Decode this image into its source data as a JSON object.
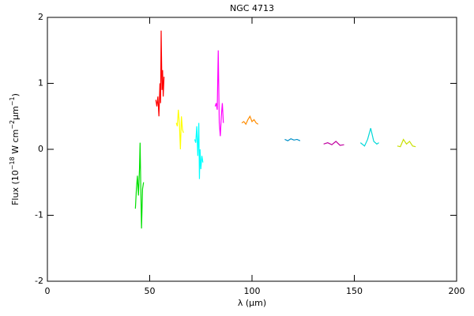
{
  "chart_data": {
    "type": "line",
    "title": "NGC 4713",
    "xlabel": "λ (μm)",
    "ylabel": [
      {
        "text": "Flux (10"
      },
      {
        "text": "−18",
        "sup": true
      },
      {
        "text": " W cm"
      },
      {
        "text": "−2",
        "sup": true
      },
      {
        "text": "μm"
      },
      {
        "text": "−1",
        "sup": true
      },
      {
        "text": ")"
      }
    ],
    "xlim": [
      0,
      200
    ],
    "xticks": [
      0,
      50,
      100,
      150,
      200
    ],
    "ylim": [
      -2,
      2
    ],
    "yticks": [
      -2,
      -1,
      0,
      1,
      2
    ],
    "series": [
      {
        "color": "#00e000",
        "x": [
          43,
          43.5,
          44,
          44.5,
          45,
          45.3,
          45.6,
          46,
          46.5,
          47
        ],
        "values": [
          -0.9,
          -0.6,
          -0.4,
          -0.7,
          -0.3,
          0.1,
          -0.5,
          -1.2,
          -0.6,
          -0.5
        ]
      },
      {
        "color": "#ff0000",
        "x": [
          53,
          53.5,
          54,
          54.5,
          55,
          55.3,
          55.6,
          56,
          56.3,
          56.6,
          57
        ],
        "values": [
          0.75,
          0.65,
          0.8,
          0.5,
          1.0,
          0.7,
          1.8,
          0.9,
          1.2,
          0.8,
          1.1
        ]
      },
      {
        "color": "#ffff00",
        "x": [
          63,
          63.5,
          64,
          64.5,
          65,
          65.5,
          66,
          66.5
        ],
        "values": [
          0.4,
          0.35,
          0.6,
          0.4,
          0.0,
          0.5,
          0.3,
          0.25
        ]
      },
      {
        "color": "#00ffff",
        "x": [
          72,
          72.5,
          73,
          73.5,
          74,
          74.3,
          74.6,
          75,
          75.5,
          76
        ],
        "values": [
          0.15,
          0.1,
          0.35,
          -0.1,
          0.4,
          -0.45,
          0.0,
          -0.3,
          -0.1,
          -0.2
        ]
      },
      {
        "color": "#ff00ff",
        "x": [
          82,
          82.5,
          83,
          83.5,
          84,
          84.5,
          85,
          85.5,
          86
        ],
        "values": [
          0.65,
          0.7,
          0.6,
          1.5,
          0.4,
          0.2,
          0.5,
          0.7,
          0.4
        ]
      },
      {
        "color": "#ff8c00",
        "x": [
          95,
          96,
          97,
          98,
          99,
          100,
          101,
          102,
          103
        ],
        "values": [
          0.4,
          0.42,
          0.38,
          0.45,
          0.5,
          0.42,
          0.45,
          0.4,
          0.38
        ]
      },
      {
        "color": "#0090c8",
        "x": [
          116,
          117.5,
          119,
          120.5,
          122,
          123.5
        ],
        "values": [
          0.15,
          0.13,
          0.16,
          0.14,
          0.15,
          0.13
        ]
      },
      {
        "color": "#c000a0",
        "x": [
          135,
          137,
          139,
          141,
          143,
          145
        ],
        "values": [
          0.08,
          0.1,
          0.07,
          0.12,
          0.06,
          0.07
        ]
      },
      {
        "color": "#00d8d8",
        "x": [
          153,
          155,
          156.5,
          158,
          159.5,
          161,
          162
        ],
        "values": [
          0.1,
          0.05,
          0.15,
          0.32,
          0.12,
          0.08,
          0.1
        ]
      },
      {
        "color": "#c8e000",
        "x": [
          171,
          172.5,
          174,
          175.5,
          177,
          178.5,
          180
        ],
        "values": [
          0.05,
          0.04,
          0.15,
          0.08,
          0.12,
          0.05,
          0.04
        ]
      }
    ]
  }
}
